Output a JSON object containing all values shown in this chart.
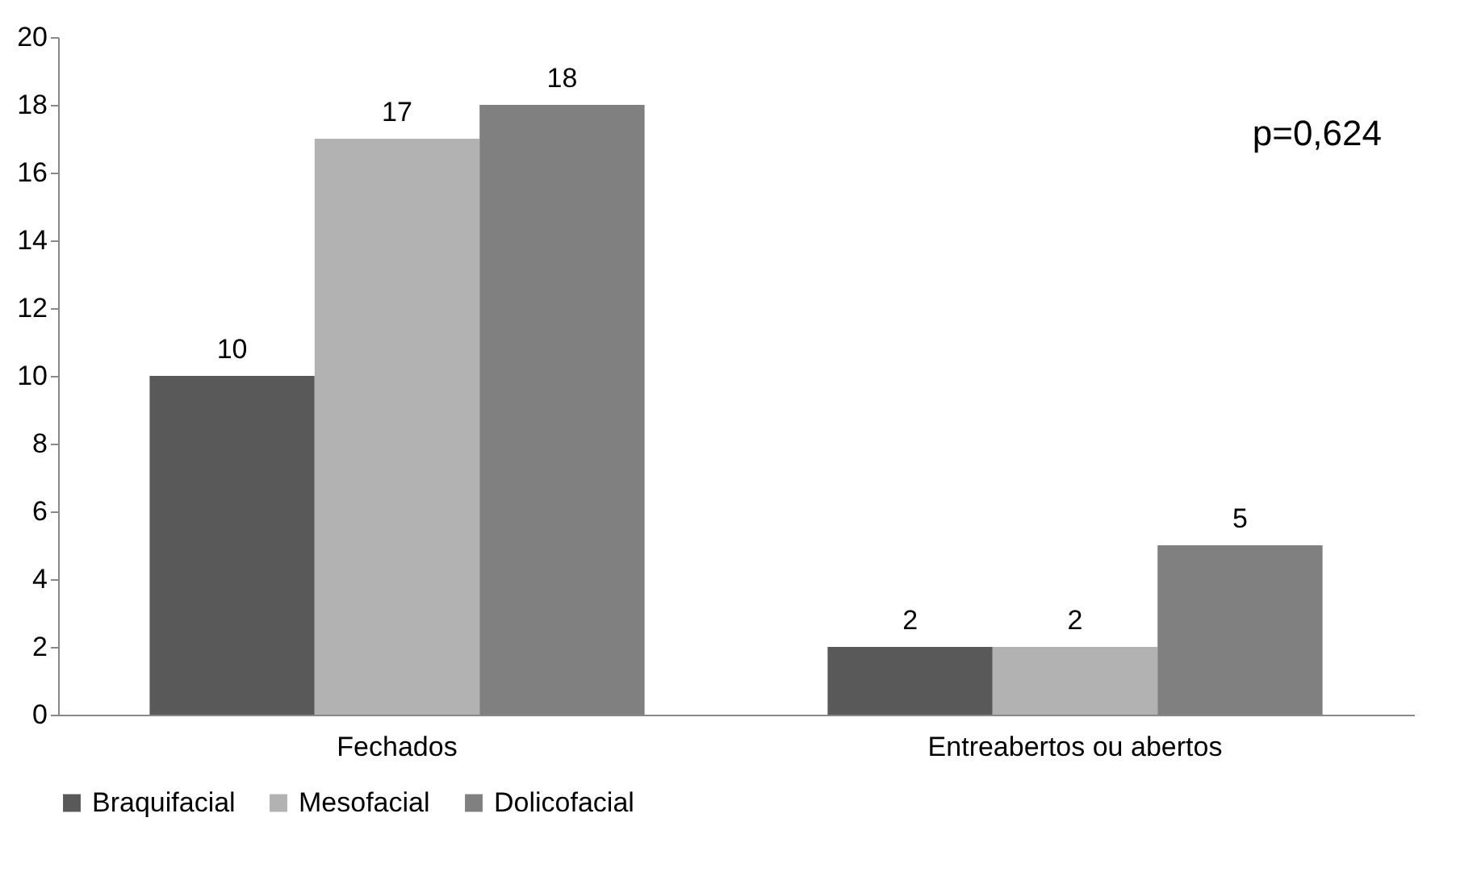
{
  "chart_data": {
    "type": "bar",
    "categories": [
      "Fechados",
      "Entreabertos ou abertos"
    ],
    "series": [
      {
        "name": "Braquifacial",
        "color": "#595959",
        "values": [
          10,
          2
        ]
      },
      {
        "name": "Mesofacial",
        "color": "#b2b2b2",
        "values": [
          17,
          2
        ]
      },
      {
        "name": "Dolicofacial",
        "color": "#808080",
        "values": [
          18,
          5
        ]
      }
    ],
    "ylim": [
      0,
      20
    ],
    "yticks": [
      0,
      2,
      4,
      6,
      8,
      10,
      12,
      14,
      16,
      18,
      20
    ],
    "grid": false,
    "legend": "bottom",
    "data_labels": true,
    "annotations": [
      "p=0,624"
    ]
  }
}
